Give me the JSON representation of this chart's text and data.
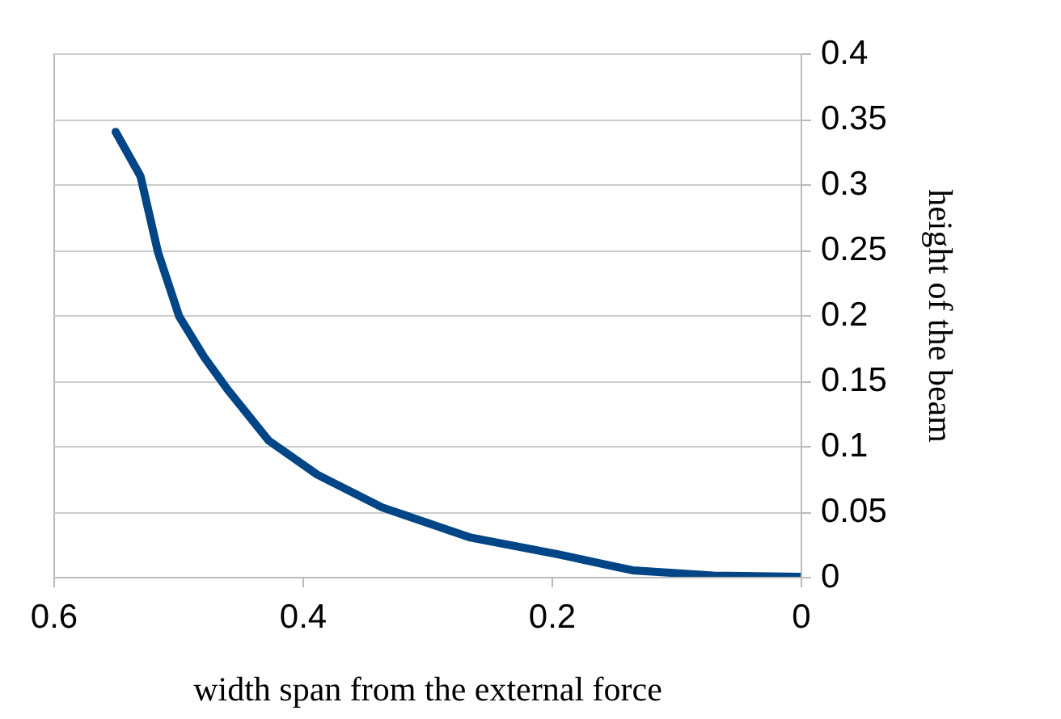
{
  "chart_data": {
    "type": "line",
    "xlabel": "width span from the external force",
    "ylabel": "height of the beam",
    "x": [
      0.55,
      0.53,
      0.516,
      0.499,
      0.479,
      0.46,
      0.427,
      0.388,
      0.336,
      0.265,
      0.194,
      0.135,
      0.07,
      0
    ],
    "series": [
      {
        "color": "#004586",
        "values": [
          0.34,
          0.306,
          0.248,
          0.199,
          0.168,
          0.143,
          0.104,
          0.078,
          0.053,
          0.03,
          0.017,
          0.005,
          0.001,
          0
        ]
      }
    ],
    "xlim": [
      0.6,
      0
    ],
    "xticks": [
      0.6,
      0.4,
      0.2,
      0
    ],
    "ylim": [
      0,
      0.4
    ],
    "yticks": [
      0,
      0.05,
      0.1,
      0.15,
      0.2,
      0.25,
      0.3,
      0.35,
      0.4
    ],
    "grid": "y",
    "marker": "none",
    "line_style": "solid"
  }
}
